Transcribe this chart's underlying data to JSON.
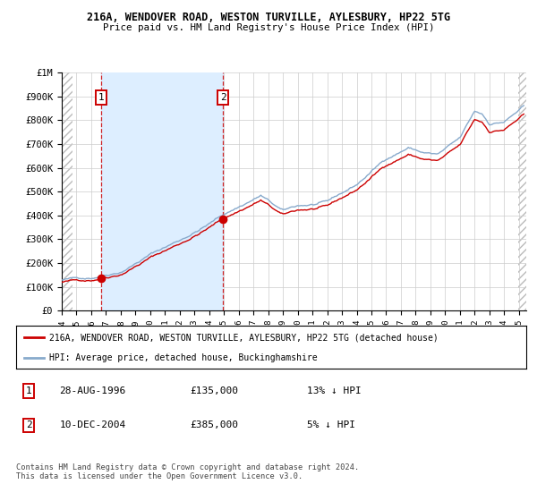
{
  "title1": "216A, WENDOVER ROAD, WESTON TURVILLE, AYLESBURY, HP22 5TG",
  "title2": "Price paid vs. HM Land Registry's House Price Index (HPI)",
  "legend_red": "216A, WENDOVER ROAD, WESTON TURVILLE, AYLESBURY, HP22 5TG (detached house)",
  "legend_blue": "HPI: Average price, detached house, Buckinghamshire",
  "annotation1_date": "28-AUG-1996",
  "annotation1_price": "£135,000",
  "annotation1_hpi": "13% ↓ HPI",
  "annotation2_date": "10-DEC-2004",
  "annotation2_price": "£385,000",
  "annotation2_hpi": "5% ↓ HPI",
  "footer": "Contains HM Land Registry data © Crown copyright and database right 2024.\nThis data is licensed under the Open Government Licence v3.0.",
  "sale1_year": 1996.66,
  "sale1_value": 135000,
  "sale2_year": 2004.94,
  "sale2_value": 385000,
  "xmin": 1994.0,
  "xmax": 2025.5,
  "ymin": 0,
  "ymax": 1000000,
  "red_color": "#cc0000",
  "blue_color": "#88aacc",
  "shade_color": "#ddeeff",
  "grid_color": "#cccccc",
  "hatch_color": "#bbbbbb",
  "background_color": "#ffffff"
}
